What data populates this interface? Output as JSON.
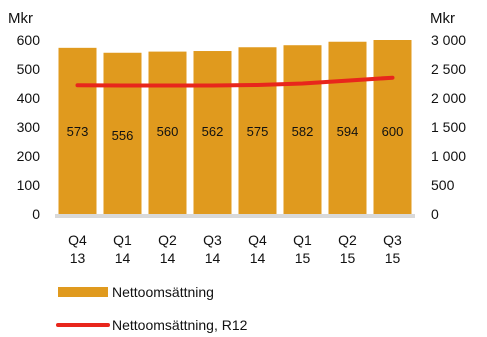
{
  "chart_data": {
    "type": "bar",
    "categories": [
      [
        "Q4",
        "13"
      ],
      [
        "Q1",
        "14"
      ],
      [
        "Q2",
        "14"
      ],
      [
        "Q3",
        "14"
      ],
      [
        "Q4",
        "14"
      ],
      [
        "Q1",
        "15"
      ],
      [
        "Q2",
        "15"
      ],
      [
        "Q3",
        "15"
      ]
    ],
    "series": [
      {
        "name": "Nettoomsättning",
        "type": "bar",
        "axis": "left",
        "color": "#E09A1E",
        "values": [
          573,
          556,
          560,
          562,
          575,
          582,
          594,
          600
        ],
        "labels": [
          "573",
          "556",
          "560",
          "562",
          "575",
          "582",
          "594",
          "600"
        ]
      },
      {
        "name": "Nettoomsättning, R12",
        "type": "line",
        "axis": "right",
        "color": "#E8261C",
        "values": [
          2220,
          2215,
          2215,
          2215,
          2225,
          2250,
          2300,
          2350
        ]
      }
    ],
    "left_axis": {
      "label": "Mkr",
      "ylim": [
        0,
        600
      ],
      "ticks": [
        "0",
        "100",
        "200",
        "300",
        "400",
        "500",
        "600"
      ]
    },
    "right_axis": {
      "label": "Mkr",
      "ylim": [
        0,
        3000
      ],
      "ticks": [
        "0",
        "500",
        "1 000",
        "1 500",
        "2 000",
        "2 500",
        "3 000"
      ]
    },
    "grid": false,
    "legend_position": "bottom-left",
    "baseline_color": "#D9D9D9"
  }
}
